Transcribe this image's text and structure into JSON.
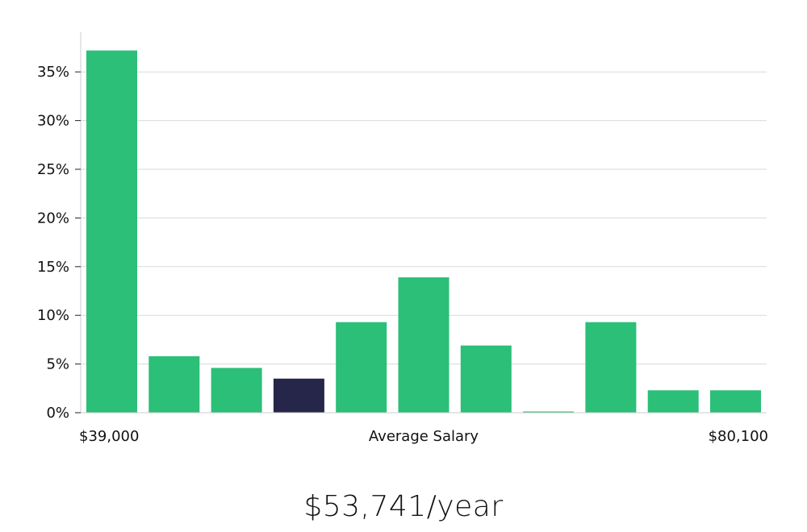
{
  "chart_data": {
    "type": "bar",
    "y_tick_labels": [
      "0%",
      "5%",
      "10%",
      "15%",
      "20%",
      "25%",
      "30%",
      "35%"
    ],
    "y_ticks": [
      0,
      5,
      10,
      15,
      20,
      25,
      30,
      35
    ],
    "ylim": [
      0,
      39
    ],
    "values": [
      37.2,
      5.8,
      4.6,
      3.5,
      9.3,
      13.9,
      6.9,
      0.1,
      9.3,
      2.3,
      2.3
    ],
    "highlight_index": 3,
    "x_labels": {
      "left": "$39,000",
      "center": "Average Salary",
      "right": "$80,100"
    },
    "grid": true
  },
  "colors": {
    "bar": "#2bbf78",
    "bar_highlight": "#26264a",
    "grid": "#d9d9d9",
    "axis": "#cccccc"
  },
  "summary": {
    "average_salary": "$53,741/year"
  }
}
